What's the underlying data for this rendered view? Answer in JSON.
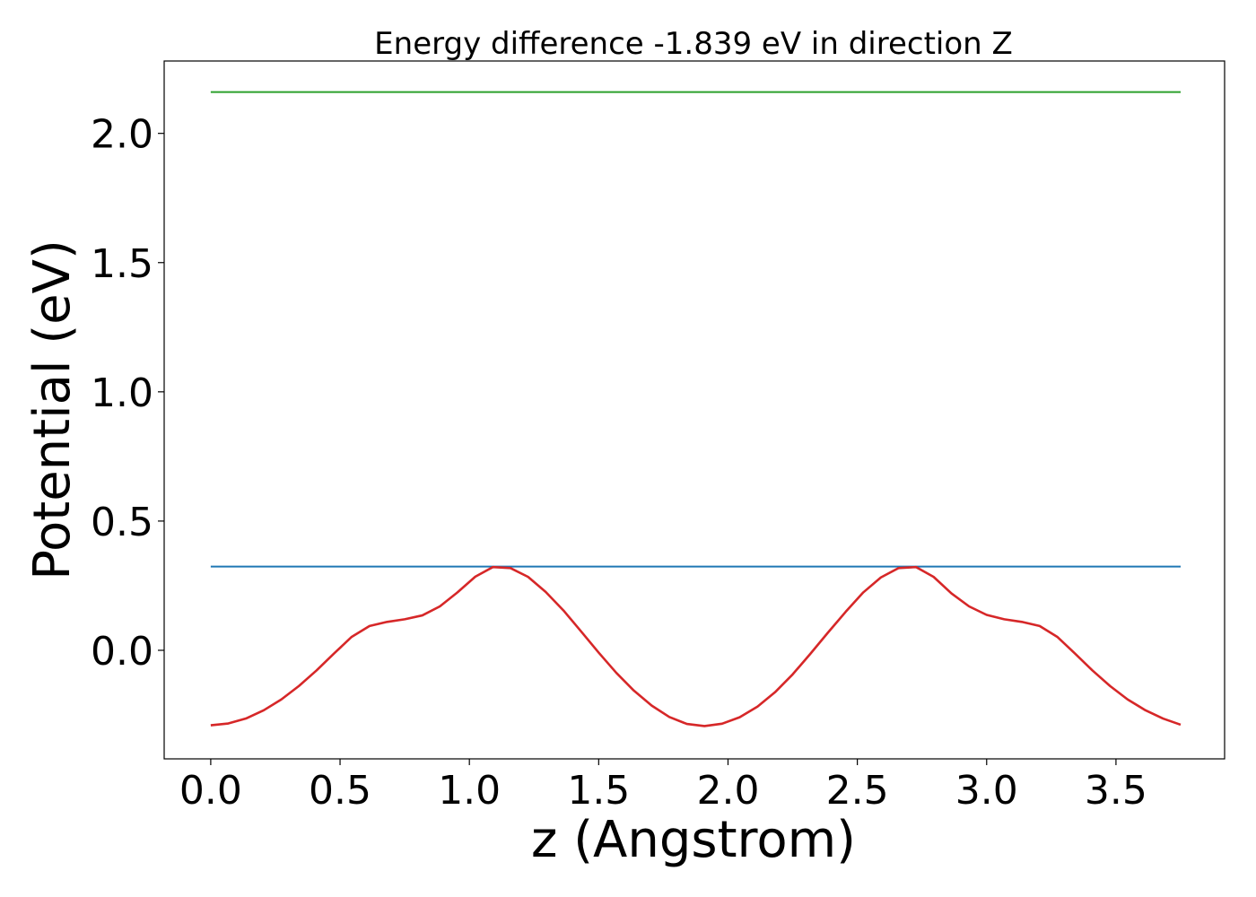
{
  "chart_data": {
    "type": "line",
    "title": "Energy difference -1.839 eV in direction Z",
    "xlabel": "z (Angstrom)",
    "ylabel": "Potential (eV)",
    "xlim": [
      -0.18,
      3.92
    ],
    "ylim": [
      -0.42,
      2.28
    ],
    "xticks": [
      {
        "value": 0.0,
        "label": "0.0"
      },
      {
        "value": 0.5,
        "label": "0.5"
      },
      {
        "value": 1.0,
        "label": "1.0"
      },
      {
        "value": 1.5,
        "label": "1.5"
      },
      {
        "value": 2.0,
        "label": "2.0"
      },
      {
        "value": 2.5,
        "label": "2.5"
      },
      {
        "value": 3.0,
        "label": "3.0"
      },
      {
        "value": 3.5,
        "label": "3.5"
      }
    ],
    "yticks": [
      {
        "value": 0.0,
        "label": "0.0"
      },
      {
        "value": 0.5,
        "label": "0.5"
      },
      {
        "value": 1.0,
        "label": "1.0"
      },
      {
        "value": 1.5,
        "label": "1.5"
      },
      {
        "value": 2.0,
        "label": "2.0"
      }
    ],
    "grid": false,
    "series": [
      {
        "color": "#2ca02c",
        "kind": "hline",
        "x": [
          0.0,
          3.75
        ],
        "y": [
          2.16,
          2.16
        ]
      },
      {
        "color": "#1f77b4",
        "kind": "hline",
        "x": [
          0.0,
          3.75
        ],
        "y": [
          0.324,
          0.324
        ]
      },
      {
        "color": "#d62728",
        "kind": "curve",
        "x": [
          0.0,
          0.068,
          0.136,
          0.205,
          0.273,
          0.341,
          0.409,
          0.477,
          0.545,
          0.614,
          0.682,
          0.75,
          0.818,
          0.886,
          0.955,
          1.023,
          1.091,
          1.159,
          1.227,
          1.295,
          1.364,
          1.432,
          1.5,
          1.568,
          1.636,
          1.705,
          1.773,
          1.841,
          1.909,
          1.977,
          2.045,
          2.114,
          2.182,
          2.25,
          2.318,
          2.386,
          2.455,
          2.523,
          2.591,
          2.659,
          2.727,
          2.795,
          2.864,
          2.932,
          3.0,
          3.068,
          3.136,
          3.205,
          3.273,
          3.341,
          3.409,
          3.477,
          3.545,
          3.614,
          3.682,
          3.75
        ],
        "y": [
          -0.29,
          -0.283,
          -0.264,
          -0.232,
          -0.19,
          -0.138,
          -0.078,
          -0.012,
          0.052,
          0.094,
          0.11,
          0.12,
          0.135,
          0.17,
          0.225,
          0.285,
          0.322,
          0.318,
          0.284,
          0.226,
          0.154,
          0.073,
          -0.009,
          -0.087,
          -0.156,
          -0.214,
          -0.258,
          -0.285,
          -0.293,
          -0.284,
          -0.259,
          -0.218,
          -0.162,
          -0.093,
          -0.014,
          0.068,
          0.149,
          0.224,
          0.282,
          0.318,
          0.322,
          0.284,
          0.22,
          0.17,
          0.137,
          0.12,
          0.11,
          0.094,
          0.052,
          -0.012,
          -0.078,
          -0.138,
          -0.19,
          -0.232,
          -0.264,
          -0.288
        ]
      }
    ]
  }
}
